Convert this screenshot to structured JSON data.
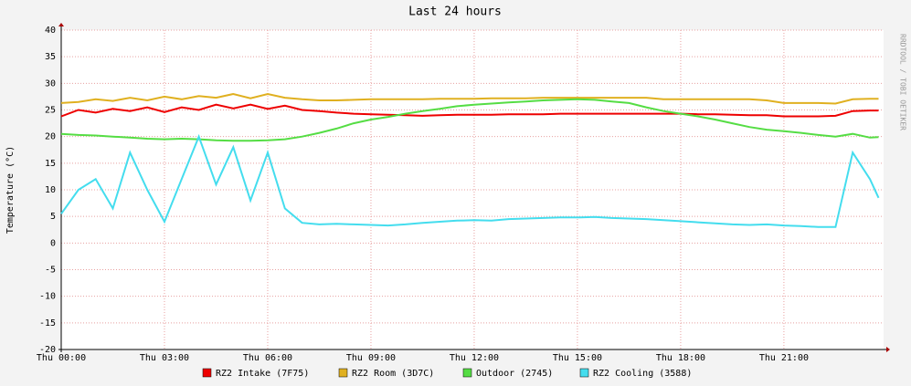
{
  "chart_data": {
    "type": "line",
    "title": "Last 24 hours",
    "y_label": "Temperature (°C)",
    "watermark": "RRDTOOL / TOBI OETIKER",
    "grid": true,
    "xlim": [
      0,
      23.87
    ],
    "ylim": [
      -20,
      40
    ],
    "xticks": [
      {
        "value": 0,
        "label": "Thu 00:00"
      },
      {
        "value": 3,
        "label": "Thu 03:00"
      },
      {
        "value": 6,
        "label": "Thu 06:00"
      },
      {
        "value": 9,
        "label": "Thu 09:00"
      },
      {
        "value": 12,
        "label": "Thu 12:00"
      },
      {
        "value": 15,
        "label": "Thu 15:00"
      },
      {
        "value": 18,
        "label": "Thu 18:00"
      },
      {
        "value": 21,
        "label": "Thu 21:00"
      }
    ],
    "yticks": [
      -20,
      -15,
      -10,
      -5,
      0,
      5,
      10,
      15,
      20,
      25,
      30,
      35,
      40
    ],
    "x": [
      0,
      0.5,
      1,
      1.5,
      2,
      2.5,
      3,
      3.5,
      4,
      4.5,
      5,
      5.5,
      6,
      6.5,
      7,
      7.5,
      8,
      8.5,
      9,
      9.5,
      10,
      10.5,
      11,
      11.5,
      12,
      12.5,
      13,
      13.5,
      14,
      14.5,
      15,
      15.5,
      16,
      16.5,
      17,
      17.5,
      18,
      18.5,
      19,
      19.5,
      20,
      20.5,
      21,
      21.5,
      22,
      22.5,
      23,
      23.5,
      23.75
    ],
    "series": [
      {
        "name": "RZ2 Intake (7F75)",
        "color": "#ee0000",
        "values": [
          23.8,
          25,
          24.5,
          25.2,
          24.8,
          25.5,
          24.6,
          25.5,
          25,
          26,
          25.3,
          26,
          25.2,
          25.8,
          25,
          24.8,
          24.5,
          24.3,
          24.2,
          24.1,
          24,
          23.9,
          24,
          24.1,
          24.1,
          24.1,
          24.2,
          24.2,
          24.2,
          24.3,
          24.3,
          24.3,
          24.3,
          24.3,
          24.3,
          24.3,
          24.3,
          24.2,
          24.2,
          24.1,
          24,
          24,
          23.8,
          23.8,
          23.8,
          23.9,
          24.8,
          24.9,
          24.9
        ]
      },
      {
        "name": "RZ2 Room (3D7C)",
        "color": "#e0b020",
        "values": [
          26.3,
          26.5,
          27,
          26.7,
          27.3,
          26.8,
          27.5,
          27,
          27.6,
          27.3,
          28,
          27.2,
          28,
          27.3,
          27,
          26.8,
          26.8,
          26.9,
          27,
          27,
          27,
          27,
          27.1,
          27.1,
          27.1,
          27.2,
          27.2,
          27.2,
          27.3,
          27.3,
          27.3,
          27.3,
          27.3,
          27.3,
          27.3,
          27,
          27,
          27,
          27,
          27,
          27,
          26.8,
          26.3,
          26.3,
          26.3,
          26.2,
          27,
          27.1,
          27.1
        ]
      },
      {
        "name": "Outdoor (2745)",
        "color": "#55dd44",
        "values": [
          20.5,
          20.3,
          20.2,
          20,
          19.8,
          19.6,
          19.5,
          19.6,
          19.5,
          19.3,
          19.2,
          19.2,
          19.3,
          19.5,
          20,
          20.7,
          21.5,
          22.5,
          23.2,
          23.7,
          24.3,
          24.8,
          25.2,
          25.7,
          26,
          26.2,
          26.4,
          26.6,
          26.8,
          26.9,
          27,
          26.9,
          26.6,
          26.3,
          25.5,
          24.8,
          24.3,
          23.8,
          23.2,
          22.5,
          21.8,
          21.3,
          21,
          20.7,
          20.3,
          20,
          20.5,
          19.8,
          19.9
        ]
      },
      {
        "name": "RZ2 Cooling (3588)",
        "color": "#44ddee",
        "values": [
          5.5,
          10,
          12,
          6.5,
          17,
          10,
          4,
          12,
          20,
          11,
          18,
          8,
          17,
          6.5,
          3.8,
          3.5,
          3.6,
          3.5,
          3.4,
          3.3,
          3.5,
          3.8,
          4,
          4.2,
          4.3,
          4.2,
          4.5,
          4.6,
          4.7,
          4.8,
          4.8,
          4.9,
          4.7,
          4.6,
          4.5,
          4.3,
          4.1,
          3.9,
          3.7,
          3.5,
          3.4,
          3.5,
          3.3,
          3.2,
          3,
          3,
          17,
          12,
          8.5
        ]
      }
    ]
  }
}
